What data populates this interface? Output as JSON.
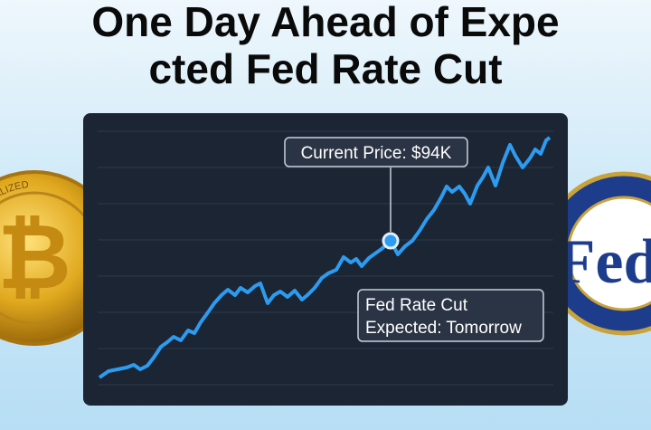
{
  "header": {
    "title_lines": [
      "One Day Ahead of Expe",
      "cted Fed Rate Cut"
    ]
  },
  "chart_panel": {
    "price_label": "Current Price: $94K",
    "event_label": [
      "Fed Rate Cut",
      "Expected: Tomorrow"
    ]
  },
  "coins": {
    "left_symbol": "₿",
    "left_ring": "DECENTRALIZED",
    "right_seal": "Fed"
  }
}
